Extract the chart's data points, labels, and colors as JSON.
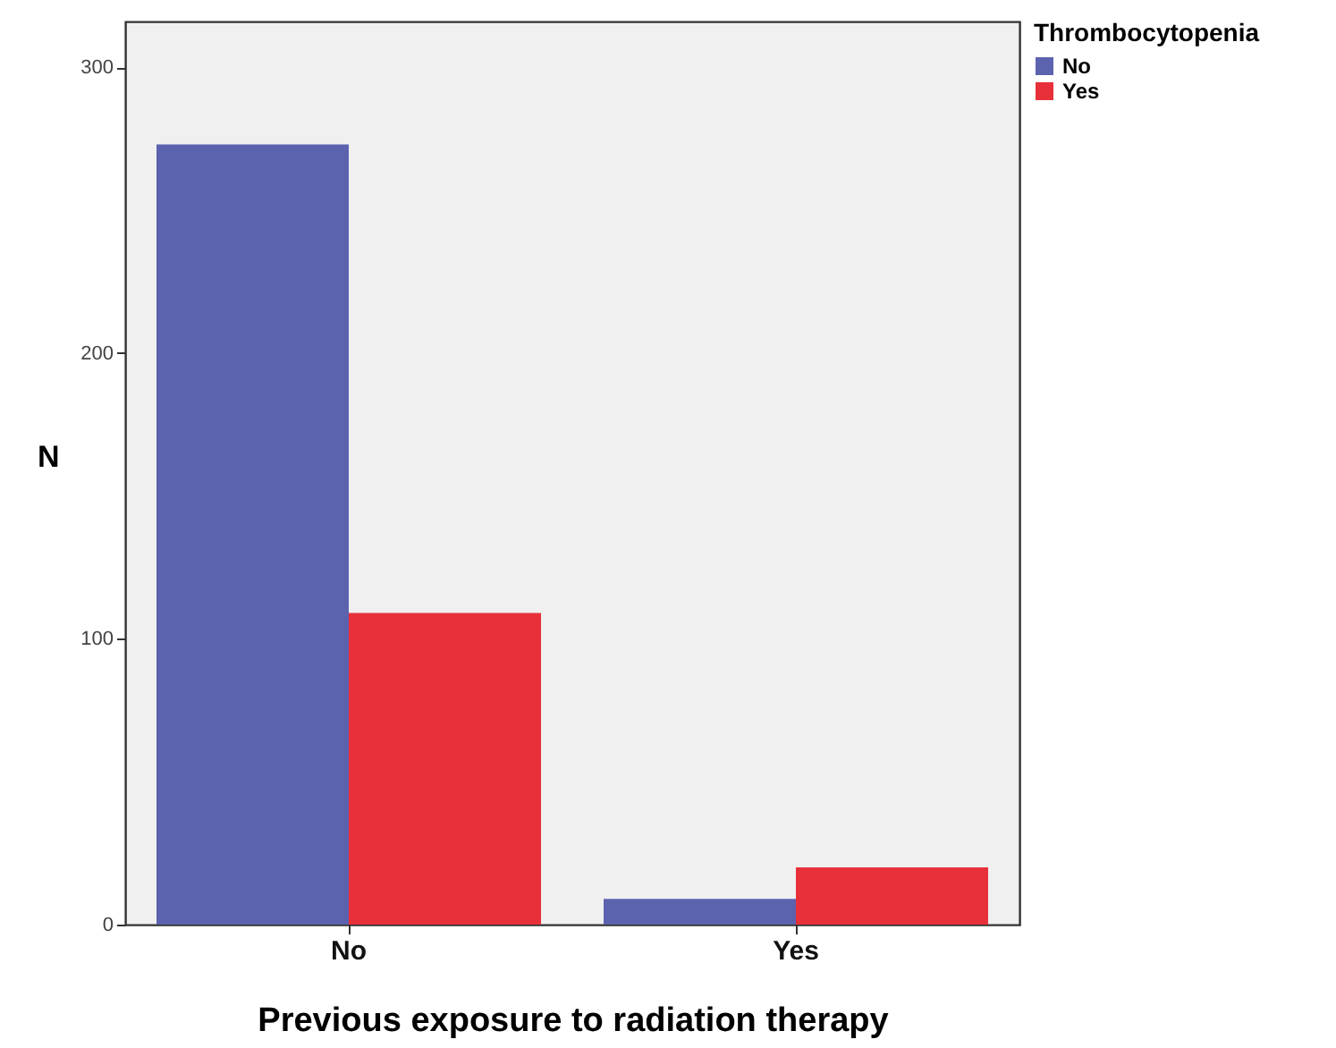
{
  "chart_data": {
    "type": "bar",
    "xlabel": "Previous exposure to radiation therapy",
    "ylabel": "N",
    "legend_title": "Thrombocytopenia",
    "legend": "top right",
    "categories": [
      "No",
      "Yes"
    ],
    "series": [
      {
        "name": "No",
        "color": "#5b62ae",
        "values": [
          273,
          9
        ]
      },
      {
        "name": "Yes",
        "color": "#e8303a",
        "values": [
          109,
          20
        ]
      }
    ],
    "ylim": [
      0,
      316
    ],
    "yticks": [
      0,
      100,
      200,
      300
    ],
    "grid": false
  }
}
